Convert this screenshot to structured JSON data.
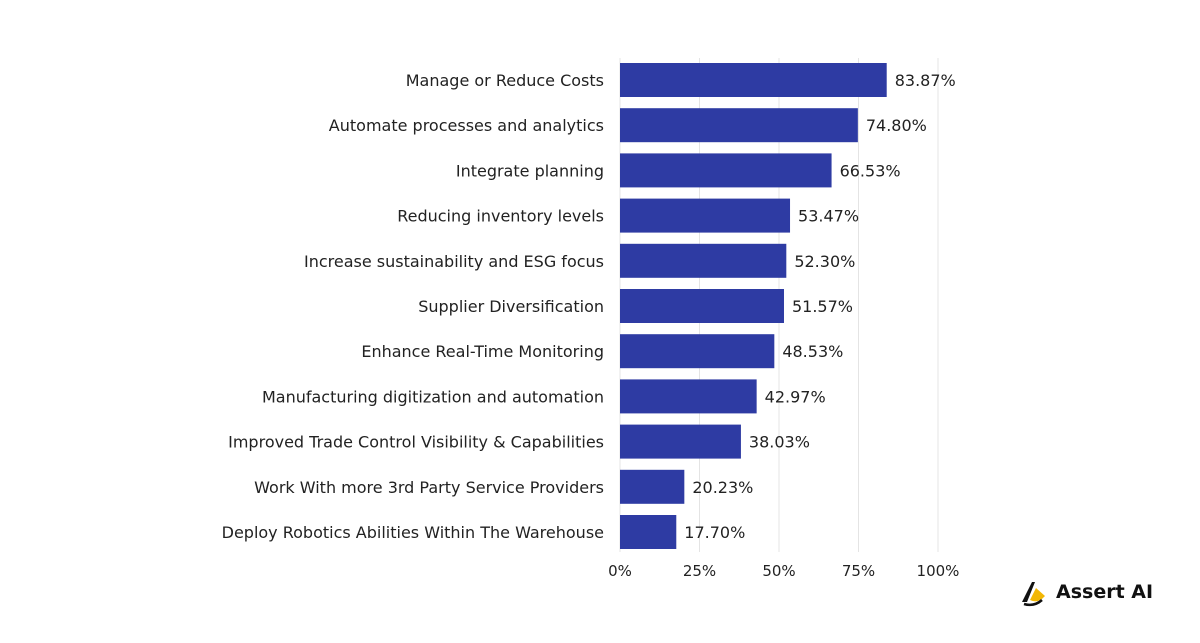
{
  "chart_data": {
    "type": "bar",
    "orientation": "horizontal",
    "categories": [
      "Manage or Reduce Costs",
      "Automate processes and analytics",
      "Integrate planning",
      "Reducing inventory levels",
      "Increase sustainability and ESG focus",
      "Supplier Diversification",
      "Enhance Real-Time Monitoring",
      "Manufacturing digitization and automation",
      "Improved Trade Control Visibility & Capabilities",
      "Work With more 3rd Party Service Providers",
      "Deploy Robotics Abilities Within The Warehouse"
    ],
    "values": [
      83.87,
      74.8,
      66.53,
      53.47,
      52.3,
      51.57,
      48.53,
      42.97,
      38.03,
      20.23,
      17.7
    ],
    "value_labels": [
      "83.87%",
      "74.80%",
      "66.53%",
      "53.47%",
      "52.30%",
      "51.57%",
      "48.53%",
      "42.97%",
      "38.03%",
      "20.23%",
      "17.70%"
    ],
    "xlim": [
      0,
      100
    ],
    "xticks": [
      0,
      25,
      50,
      75,
      100
    ],
    "xtick_labels": [
      "0%",
      "25%",
      "50%",
      "75%",
      "100%"
    ],
    "grid": "vertical",
    "bar_color": "#2e3ba3",
    "title": "",
    "xlabel": "",
    "ylabel": ""
  },
  "brand": {
    "name": "Assert AI",
    "icon": "assert-ai-logo-icon",
    "icon_colors": [
      "#f2b705",
      "#111111"
    ]
  }
}
